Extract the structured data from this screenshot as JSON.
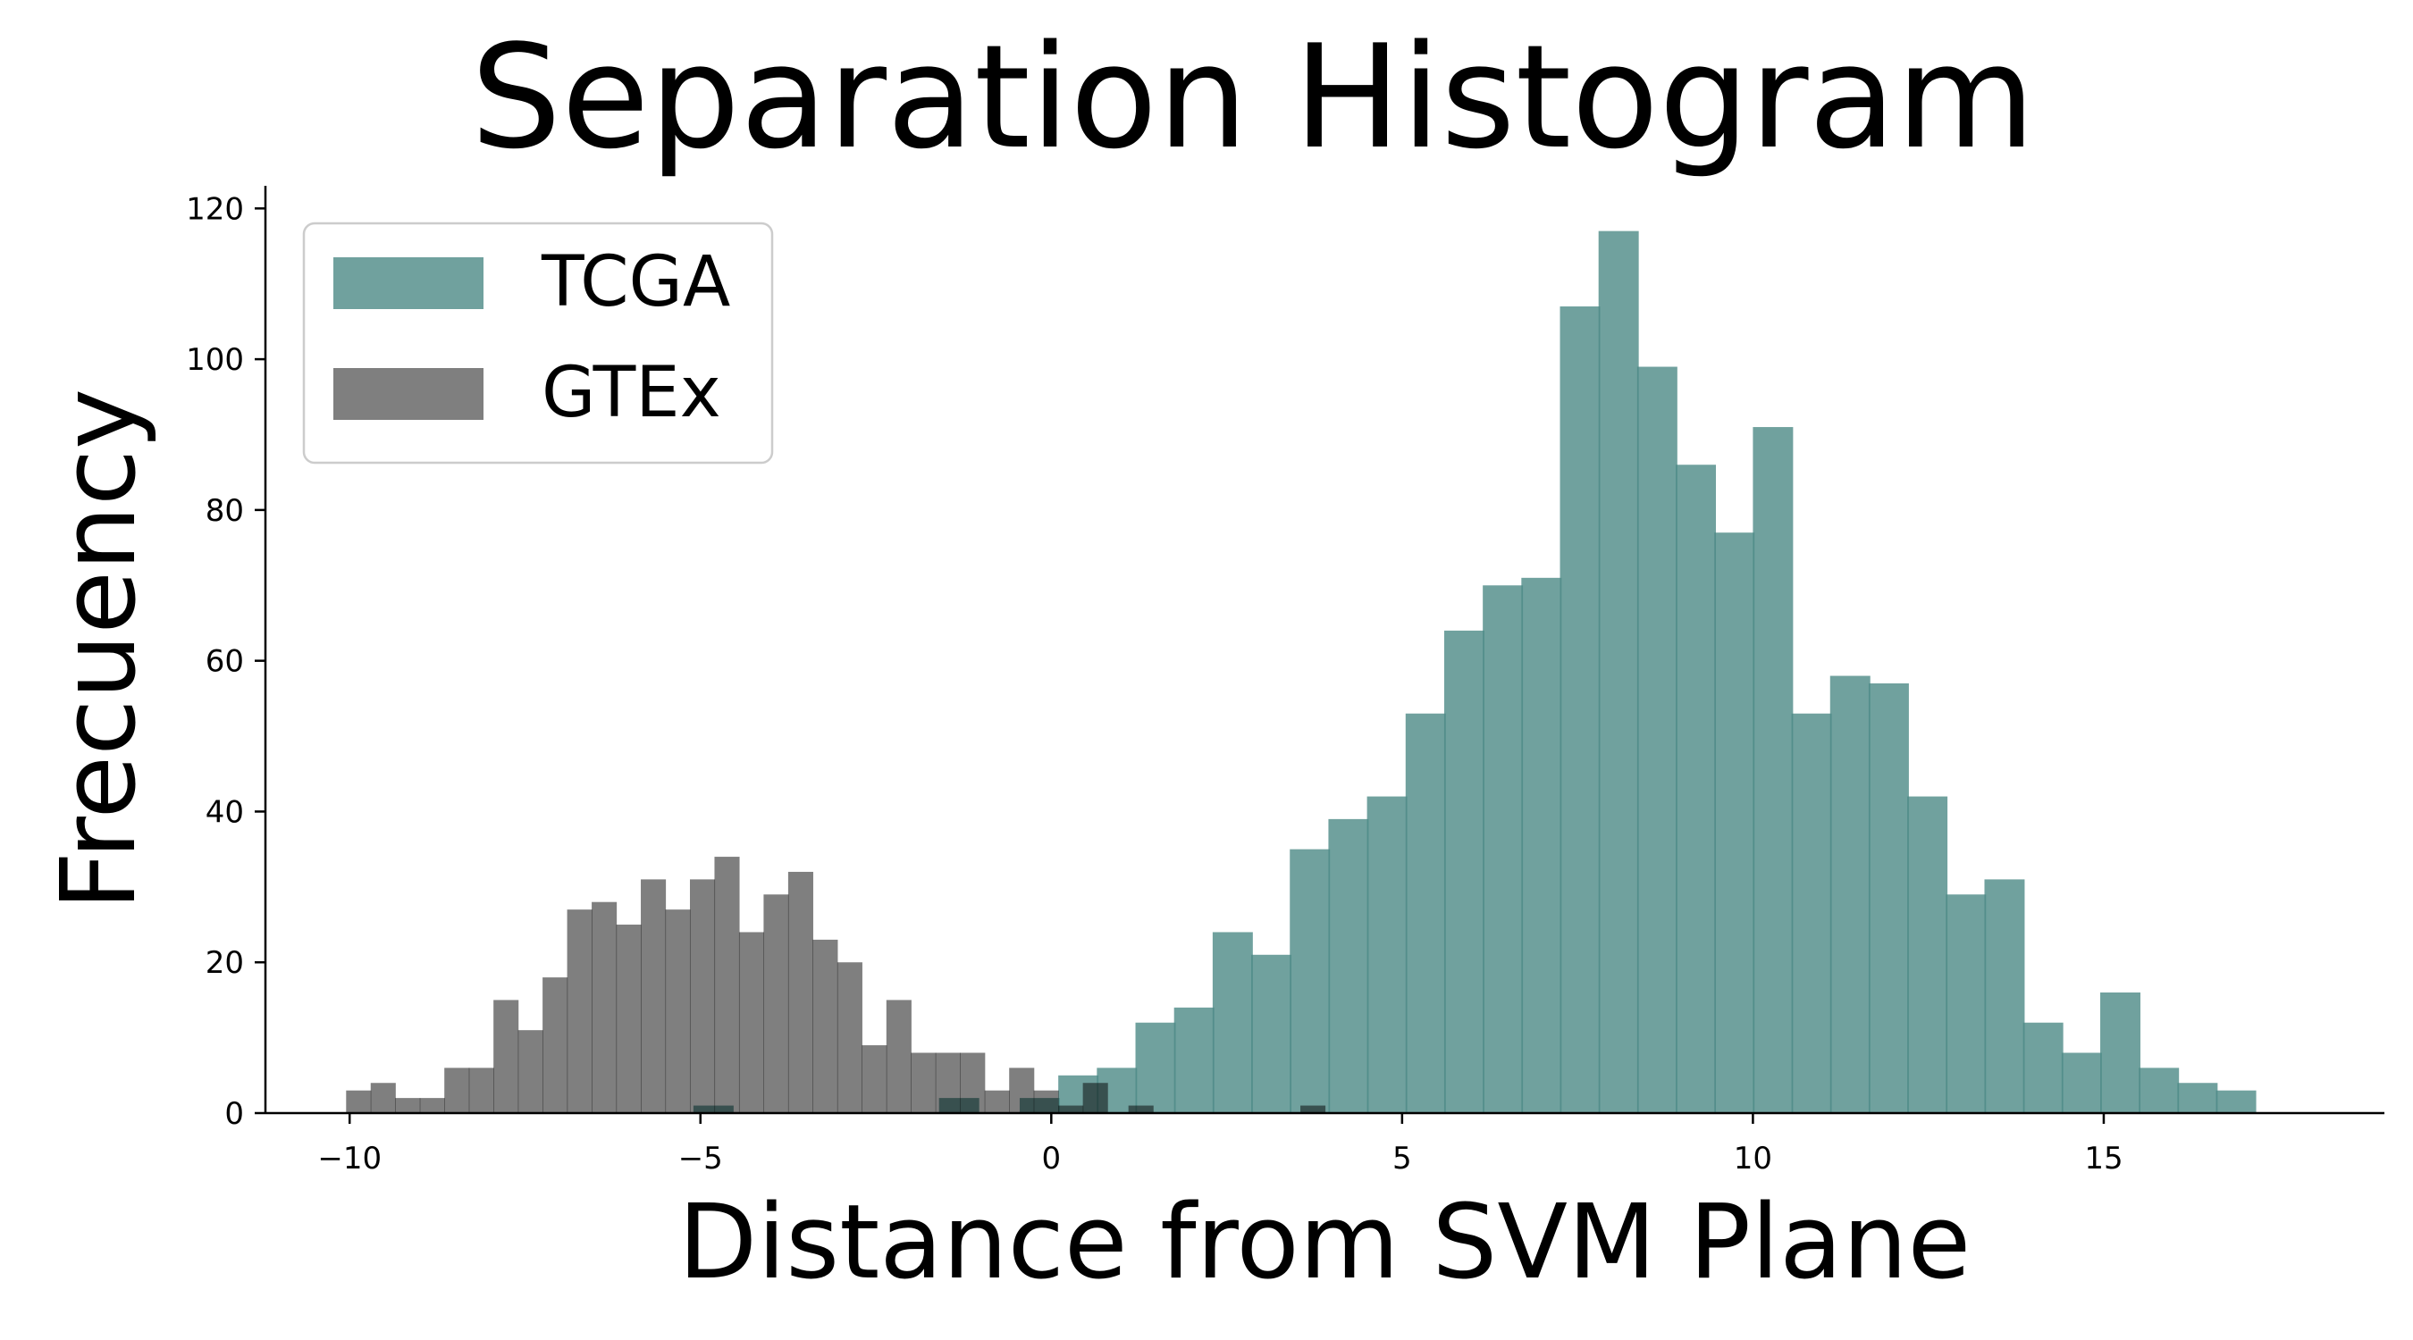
{
  "chart_data": {
    "type": "bar",
    "title": "Separation Histogram",
    "xlabel": "Distance from SVM Plane",
    "ylabel": "Frecuency",
    "xlim": [
      -11.2,
      19.0
    ],
    "ylim": [
      0,
      123
    ],
    "xticks": [
      -10,
      -5,
      0,
      5,
      10,
      15
    ],
    "xtick_labels": [
      "−10",
      "−5",
      "0",
      "5",
      "10",
      "15"
    ],
    "yticks": [
      0,
      20,
      40,
      60,
      80,
      100,
      120
    ],
    "ytick_labels": [
      "0",
      "20",
      "40",
      "60",
      "80",
      "100",
      "120"
    ],
    "grid": false,
    "legend_position": "top-left",
    "series": [
      {
        "name": "TCGA",
        "color": "#4c8a86",
        "alpha": 0.8,
        "bin_width": 0.565,
        "bins": [
          {
            "x": -5.1,
            "count": 1
          },
          {
            "x": -1.6,
            "count": 2
          },
          {
            "x": -0.45,
            "count": 2
          },
          {
            "x": 0.1,
            "count": 5
          },
          {
            "x": 0.65,
            "count": 6
          },
          {
            "x": 1.2,
            "count": 12
          },
          {
            "x": 1.75,
            "count": 14
          },
          {
            "x": 2.3,
            "count": 24
          },
          {
            "x": 2.85,
            "count": 21
          },
          {
            "x": 3.4,
            "count": 35
          },
          {
            "x": 3.95,
            "count": 39
          },
          {
            "x": 4.5,
            "count": 42
          },
          {
            "x": 5.05,
            "count": 53
          },
          {
            "x": 5.6,
            "count": 64
          },
          {
            "x": 6.15,
            "count": 70
          },
          {
            "x": 6.7,
            "count": 71
          },
          {
            "x": 7.25,
            "count": 107
          },
          {
            "x": 7.8,
            "count": 117
          },
          {
            "x": 8.35,
            "count": 99
          },
          {
            "x": 8.9,
            "count": 86
          },
          {
            "x": 9.45,
            "count": 77
          },
          {
            "x": 10.0,
            "count": 91
          },
          {
            "x": 10.55,
            "count": 53
          },
          {
            "x": 11.1,
            "count": 58
          },
          {
            "x": 11.65,
            "count": 57
          },
          {
            "x": 12.2,
            "count": 42
          },
          {
            "x": 12.75,
            "count": 29
          },
          {
            "x": 13.3,
            "count": 31
          },
          {
            "x": 13.85,
            "count": 12
          },
          {
            "x": 14.4,
            "count": 8
          },
          {
            "x": 14.95,
            "count": 16
          },
          {
            "x": 15.5,
            "count": 6
          },
          {
            "x": 16.05,
            "count": 4
          },
          {
            "x": 16.6,
            "count": 3
          }
        ]
      },
      {
        "name": "GTEx",
        "color": "#000000",
        "alpha": 0.5,
        "bin_width": 0.35,
        "bins": [
          {
            "x": -10.05,
            "count": 3
          },
          {
            "x": -9.7,
            "count": 4
          },
          {
            "x": -9.35,
            "count": 2
          },
          {
            "x": -9.0,
            "count": 2
          },
          {
            "x": -8.65,
            "count": 6
          },
          {
            "x": -8.3,
            "count": 6
          },
          {
            "x": -7.95,
            "count": 15
          },
          {
            "x": -7.6,
            "count": 11
          },
          {
            "x": -7.25,
            "count": 18
          },
          {
            "x": -6.9,
            "count": 27
          },
          {
            "x": -6.55,
            "count": 28
          },
          {
            "x": -6.2,
            "count": 25
          },
          {
            "x": -5.85,
            "count": 31
          },
          {
            "x": -5.5,
            "count": 27
          },
          {
            "x": -5.15,
            "count": 31
          },
          {
            "x": -4.8,
            "count": 34
          },
          {
            "x": -4.45,
            "count": 24
          },
          {
            "x": -4.1,
            "count": 29
          },
          {
            "x": -3.75,
            "count": 32
          },
          {
            "x": -3.4,
            "count": 23
          },
          {
            "x": -3.05,
            "count": 20
          },
          {
            "x": -2.7,
            "count": 9
          },
          {
            "x": -2.35,
            "count": 15
          },
          {
            "x": -2.0,
            "count": 8
          },
          {
            "x": -1.65,
            "count": 8
          },
          {
            "x": -1.3,
            "count": 8
          },
          {
            "x": -0.95,
            "count": 3
          },
          {
            "x": -0.6,
            "count": 6
          },
          {
            "x": -0.25,
            "count": 3
          },
          {
            "x": 0.1,
            "count": 1
          },
          {
            "x": 0.45,
            "count": 4
          },
          {
            "x": 1.1,
            "count": 1
          },
          {
            "x": 3.55,
            "count": 1
          }
        ]
      }
    ]
  }
}
